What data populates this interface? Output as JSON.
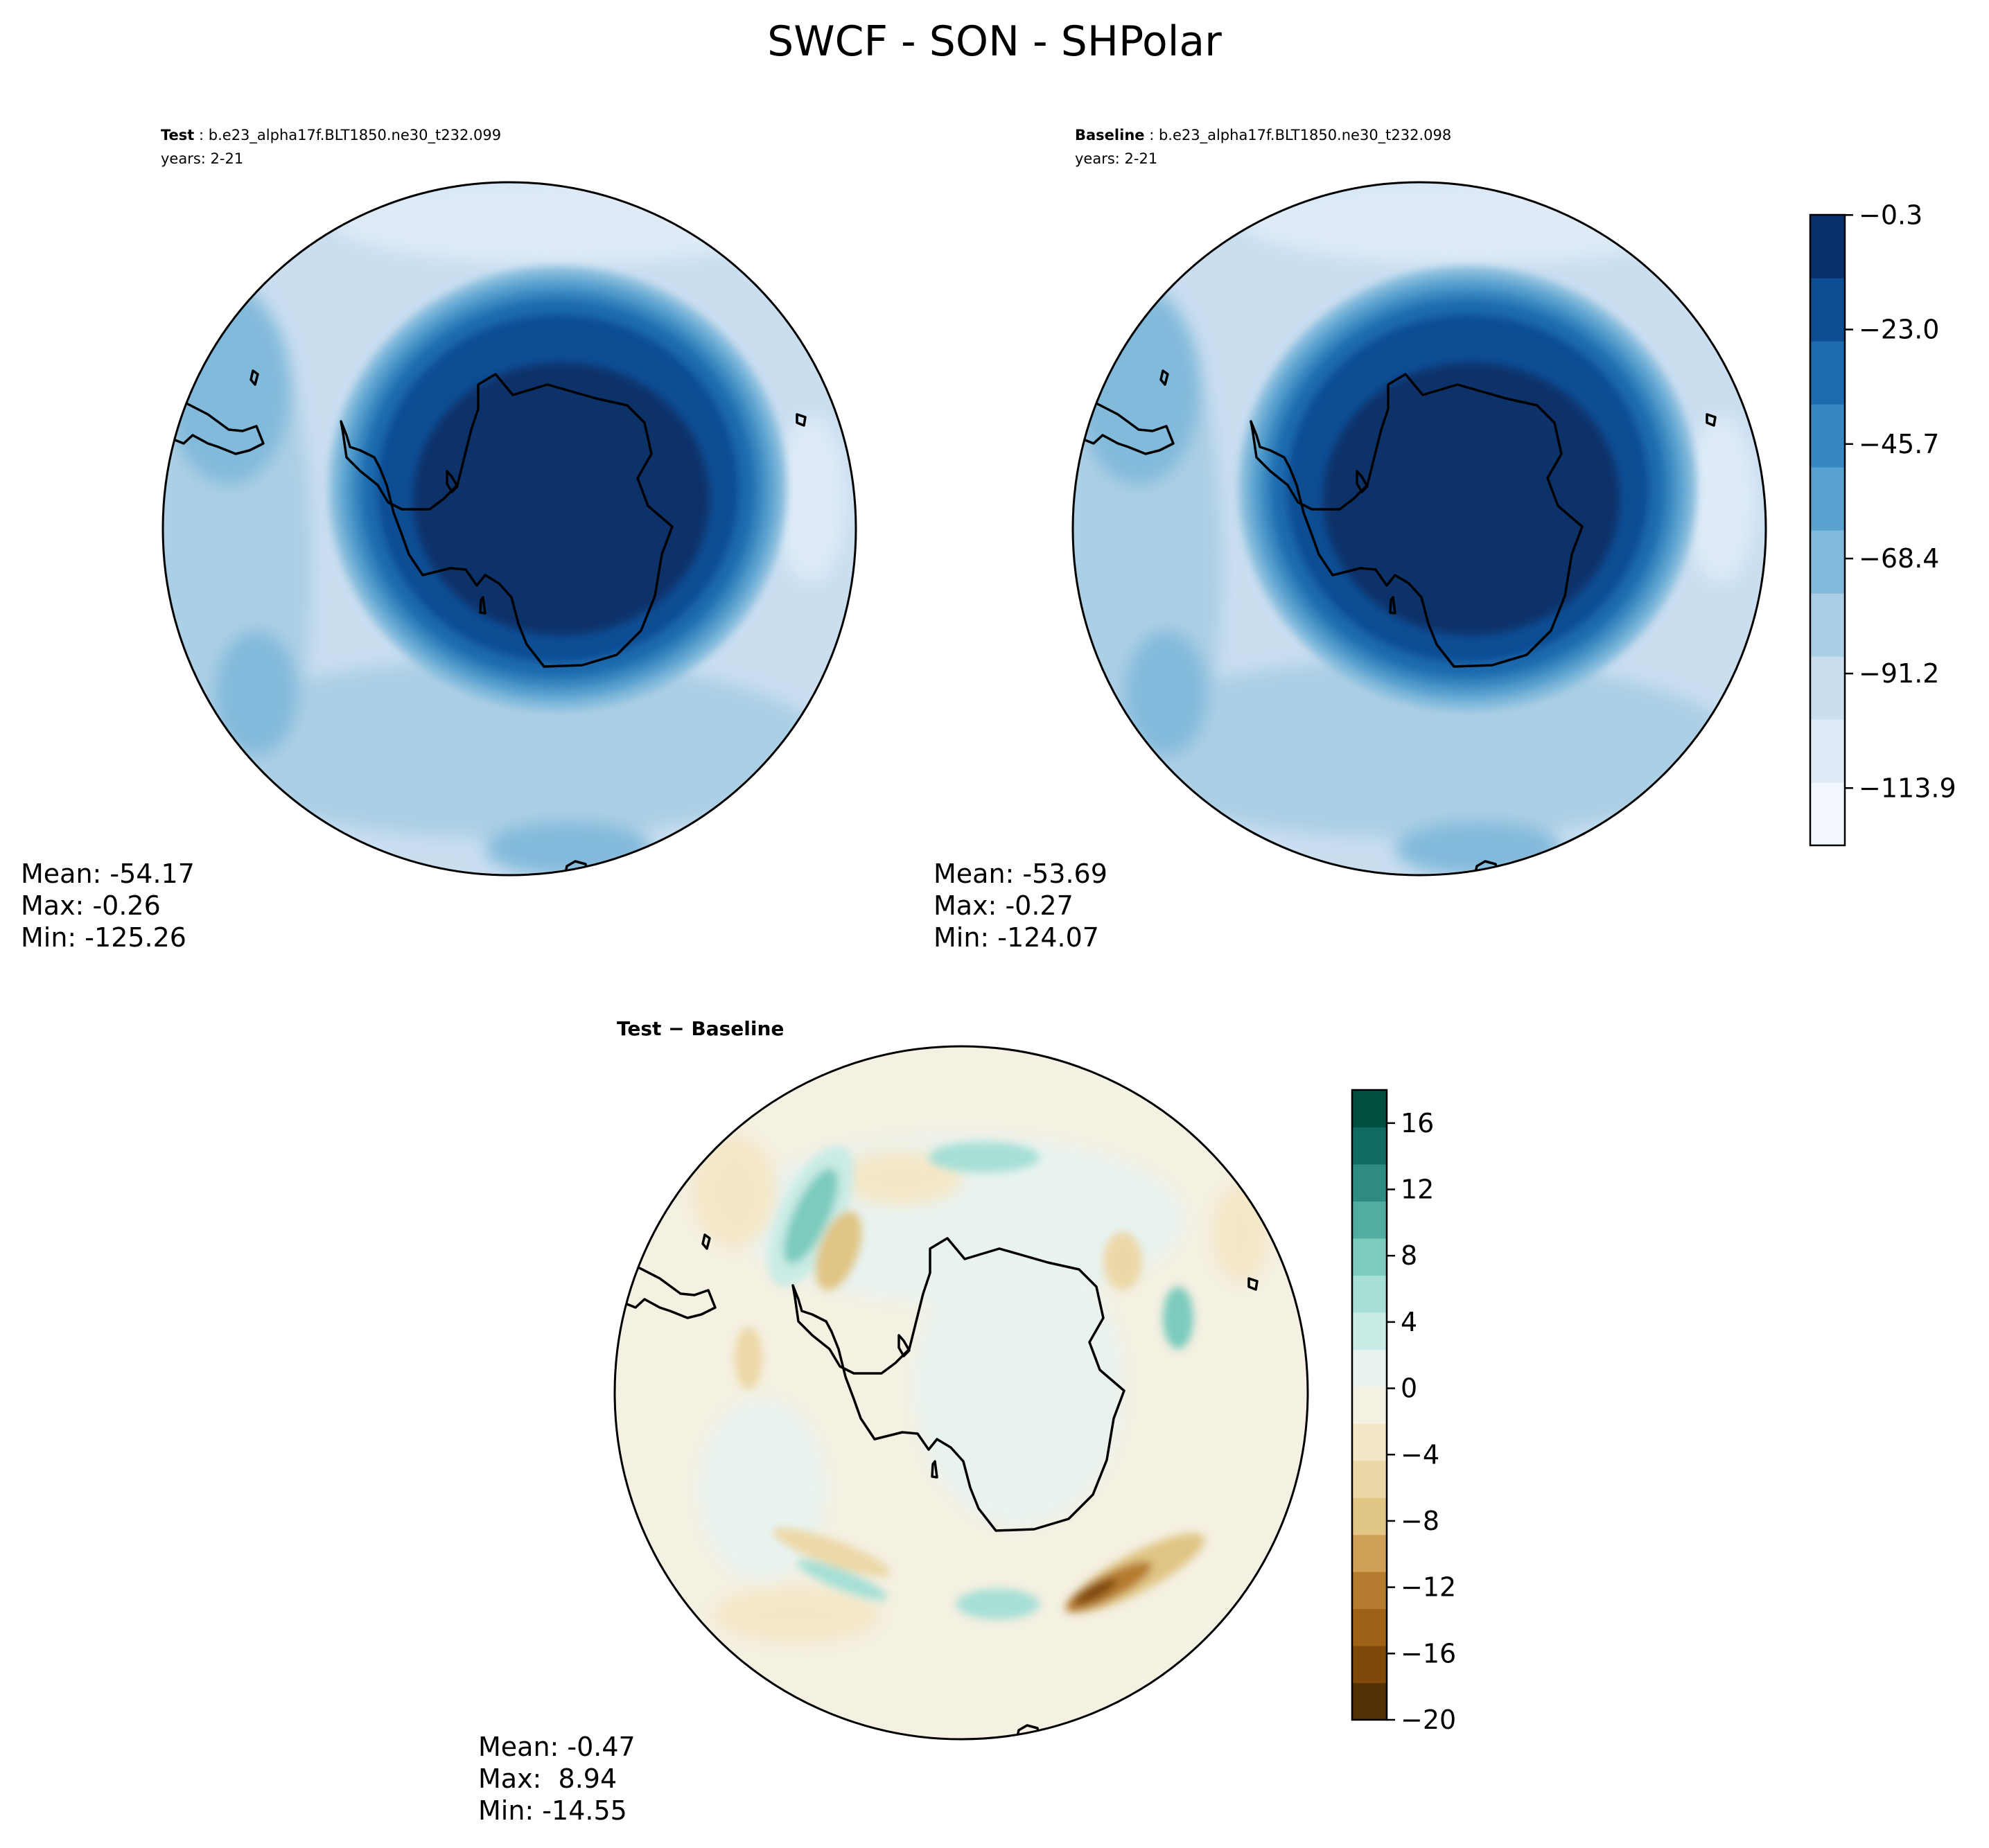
{
  "figure": {
    "title": "SWCF - SON - SHPolar"
  },
  "chart_data": [
    {
      "type": "heatmap",
      "projection": "south-polar-stereographic",
      "subtitle_bold": "Test",
      "subtitle_rest": ": b.e23_alpha17f.BLT1850.ne30_t232.099",
      "years_label": "years: 2-21",
      "stats": {
        "mean": "Mean: -54.17",
        "max": "Max: -0.26",
        "min": "Min: -125.26"
      },
      "colormap": "Blues_r"
    },
    {
      "type": "heatmap",
      "projection": "south-polar-stereographic",
      "subtitle_bold": "Baseline",
      "subtitle_rest": ": b.e23_alpha17f.BLT1850.ne30_t232.098",
      "years_label": "years: 2-21",
      "stats": {
        "mean": "Mean: -53.69",
        "max": "Max: -0.27",
        "min": "Min: -124.07"
      },
      "colormap": "Blues_r",
      "colorbar": {
        "range": [
          -125.26,
          -0.26
        ],
        "tick_values": [
          -0.3,
          -23.0,
          -45.7,
          -68.4,
          -91.2,
          -113.9
        ],
        "tick_labels": [
          "−0.3",
          "−23.0",
          "−45.7",
          "−68.4",
          "−91.2",
          "−113.9"
        ],
        "level_colors": [
          "#f1f7fd",
          "#deebf7",
          "#cadef0",
          "#abcfe5",
          "#82badb",
          "#59a1cf",
          "#3787c0",
          "#1c6aaf",
          "#0b4e94",
          "#08306b"
        ]
      }
    },
    {
      "type": "heatmap",
      "projection": "south-polar-stereographic",
      "title_bold": "Test − Baseline",
      "stats": {
        "mean": "Mean: -0.47",
        "max": "Max:  8.94",
        "min": "Min: -14.55"
      },
      "colormap": "BrBG",
      "colorbar": {
        "range": [
          -20,
          18
        ],
        "tick_values": [
          16,
          12,
          8,
          4,
          0,
          -4,
          -8,
          -12,
          -16,
          -20
        ],
        "tick_labels": [
          "16",
          "12",
          "8",
          "4",
          "0",
          "−4",
          "−8",
          "−12",
          "−16",
          "−20"
        ],
        "level_colors": [
          "#543005",
          "#7f4909",
          "#9f6115",
          "#b57b2e",
          "#cfa156",
          "#e0c584",
          "#ecd8a7",
          "#f5e7c6",
          "#f4f0e2",
          "#e8f3f0",
          "#c9ebe5",
          "#a6dfd5",
          "#7ccbbd",
          "#50ad9f",
          "#2d8b82",
          "#116b62",
          "#01503f"
        ]
      }
    }
  ]
}
